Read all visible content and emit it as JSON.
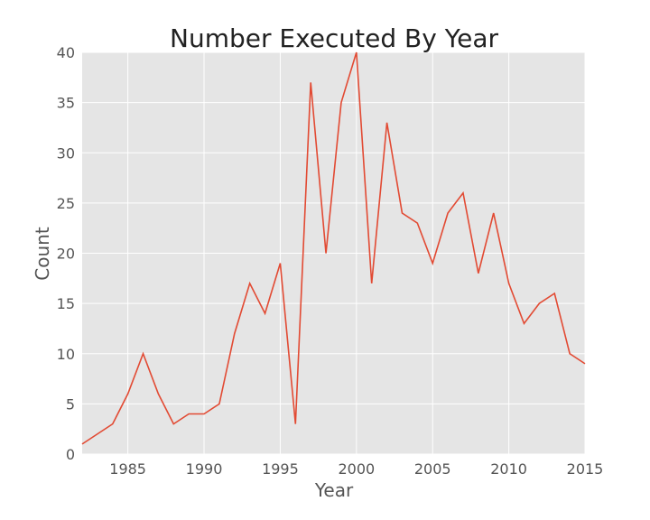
{
  "chart_data": {
    "type": "line",
    "title": "Number Executed By Year",
    "xlabel": "Year",
    "ylabel": "Count",
    "xlim": [
      1982,
      2015
    ],
    "ylim": [
      0,
      40
    ],
    "xticks": [
      1985,
      1990,
      1995,
      2000,
      2005,
      2010,
      2015
    ],
    "yticks": [
      0,
      5,
      10,
      15,
      20,
      25,
      30,
      35,
      40
    ],
    "grid": true,
    "colors": {
      "background": "#e5e5e5",
      "grid": "#ffffff",
      "line": "#e24a33"
    },
    "series": [
      {
        "x": [
          1982,
          1983,
          1984,
          1985,
          1986,
          1987,
          1988,
          1989,
          1990,
          1991,
          1992,
          1993,
          1994,
          1995,
          1996,
          1997,
          1998,
          1999,
          2000,
          2001,
          2002,
          2003,
          2004,
          2005,
          2006,
          2007,
          2008,
          2009,
          2010,
          2011,
          2012,
          2013,
          2014,
          2015
        ],
        "y": [
          1,
          2,
          3,
          6,
          10,
          6,
          3,
          4,
          4,
          5,
          12,
          17,
          14,
          19,
          3,
          37,
          20,
          35,
          40,
          17,
          33,
          24,
          23,
          19,
          24,
          26,
          18,
          24,
          17,
          13,
          15,
          16,
          10,
          9
        ]
      }
    ]
  }
}
